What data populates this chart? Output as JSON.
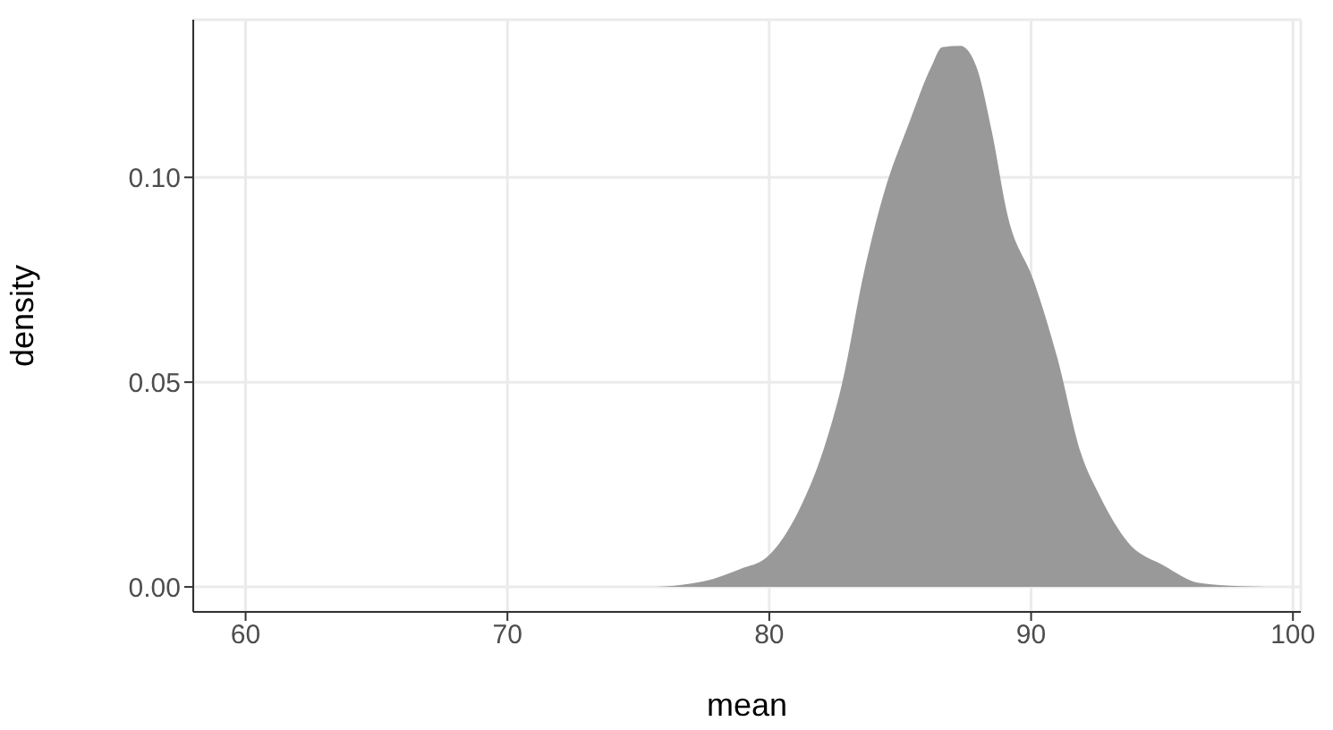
{
  "chart_data": {
    "type": "area",
    "xlabel": "mean",
    "ylabel": "density",
    "color": "#999999",
    "x": [
      60,
      75.3,
      77.5,
      78.9,
      79.9,
      81.2,
      82.1,
      82.8,
      83.6,
      84.4,
      85.3,
      86.2,
      86.6,
      87.3,
      87.9,
      88.5,
      89.1,
      90.1,
      91.0,
      91.9,
      92.6,
      93.7,
      95.1,
      96.4,
      98.0,
      100.0
    ],
    "values": [
      0,
      0,
      0.0014,
      0.0044,
      0.0072,
      0.0196,
      0.0341,
      0.0502,
      0.0763,
      0.0966,
      0.1126,
      0.1272,
      0.1318,
      0.1321,
      0.1272,
      0.1112,
      0.0908,
      0.0748,
      0.056,
      0.0327,
      0.0225,
      0.0109,
      0.0051,
      0.001,
      0.0002,
      0
    ],
    "xlim": [
      58.0,
      100.3
    ],
    "ylim": [
      -0.0061,
      0.1385
    ],
    "xticks": [
      60,
      70,
      80,
      90,
      100
    ],
    "yticks": [
      {
        "value": 0,
        "label": "0.00"
      },
      {
        "value": 0.05,
        "label": "0.05"
      },
      {
        "value": 0.1,
        "label": "0.10"
      }
    ],
    "grid": true
  }
}
